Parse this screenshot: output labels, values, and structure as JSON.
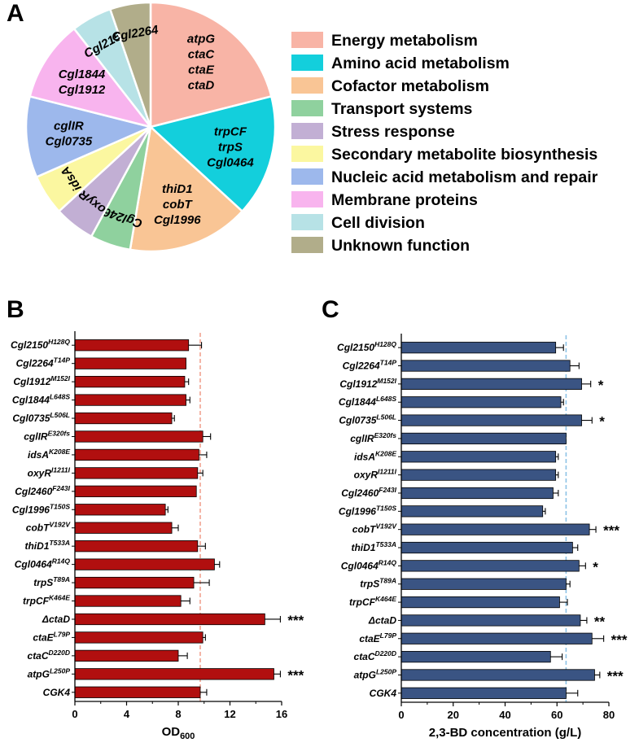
{
  "panel_labels": {
    "a": "A",
    "b": "B",
    "c": "C"
  },
  "chart_data": [
    {
      "type": "pie",
      "panel": "A",
      "legend_position": "right",
      "slices": [
        {
          "category": "Energy metabolism",
          "value": 4,
          "color": "#F8B4A6",
          "genes": [
            "atpG",
            "ctaC",
            "ctaE",
            "ctaD"
          ]
        },
        {
          "category": "Amino acid metabolism",
          "value": 3,
          "color": "#13CFDC",
          "genes": [
            "trpCF",
            "trpS",
            "Cgl0464"
          ]
        },
        {
          "category": "Cofactor metabolism",
          "value": 3,
          "color": "#F9C595",
          "genes": [
            "thiD1",
            "cobT",
            "Cgl1996"
          ]
        },
        {
          "category": "Transport systems",
          "value": 1,
          "color": "#8FD19E",
          "genes": [
            "Cgl2460"
          ]
        },
        {
          "category": "Stress response",
          "value": 1,
          "color": "#C2AFD4",
          "genes": [
            "oxyR"
          ]
        },
        {
          "category": "Secondary metabolite biosynthesis",
          "value": 1,
          "color": "#FBF7A0",
          "genes": [
            "idsA"
          ]
        },
        {
          "category": "Nucleic acid metabolism and repair",
          "value": 2,
          "color": "#9DB8EC",
          "genes": [
            "cglIR",
            "Cgl0735"
          ]
        },
        {
          "category": "Membrane proteins",
          "value": 2,
          "color": "#F8B4EE",
          "genes": [
            "Cgl1844",
            "Cgl1912"
          ]
        },
        {
          "category": "Cell division",
          "value": 1,
          "color": "#B7E2E6",
          "genes": [
            "Cgl2150"
          ]
        },
        {
          "category": "Unknown function",
          "value": 1,
          "color": "#B1AD8A",
          "genes": [
            "Cgl2264"
          ]
        }
      ]
    },
    {
      "type": "bar",
      "orientation": "horizontal",
      "panel": "B",
      "xlabel": "OD",
      "xlabel_sub": "600",
      "xlim": [
        0,
        16
      ],
      "xticks": [
        0,
        4,
        8,
        12,
        16
      ],
      "bar_color": "#B10F0F",
      "reference_line": {
        "value": 9.7,
        "color": "#F1A290",
        "style": "dashed"
      },
      "categories": [
        {
          "base": "Cgl2150",
          "sup": "H128Q",
          "value": 8.8,
          "error": 1.0,
          "sig": ""
        },
        {
          "base": "Cgl2264",
          "sup": "T14P",
          "value": 8.6,
          "error": 0.0,
          "sig": ""
        },
        {
          "base": "Cgl1912",
          "sup": "M152I",
          "value": 8.5,
          "error": 0.3,
          "sig": ""
        },
        {
          "base": "Cgl1844",
          "sup": "L648S",
          "value": 8.6,
          "error": 0.3,
          "sig": ""
        },
        {
          "base": "Cgl0735",
          "sup": "L506L",
          "value": 7.5,
          "error": 0.2,
          "sig": ""
        },
        {
          "base": "cglIR",
          "sup": "E320fs",
          "value": 9.9,
          "error": 0.6,
          "sig": ""
        },
        {
          "base": "idsA",
          "sup": "K208E",
          "value": 9.6,
          "error": 0.6,
          "sig": ""
        },
        {
          "base": "oxyR",
          "sup": "I1211I",
          "value": 9.5,
          "error": 0.4,
          "sig": ""
        },
        {
          "base": "Cgl2460",
          "sup": "F243I",
          "value": 9.4,
          "error": 0.0,
          "sig": ""
        },
        {
          "base": "Cgl1996",
          "sup": "T150S",
          "value": 7.0,
          "error": 0.2,
          "sig": ""
        },
        {
          "base": "cobT",
          "sup": "V192V",
          "value": 7.5,
          "error": 0.5,
          "sig": ""
        },
        {
          "base": "thiD1",
          "sup": "T533A",
          "value": 9.5,
          "error": 0.6,
          "sig": ""
        },
        {
          "base": "Cgl0464",
          "sup": "R14Q",
          "value": 10.8,
          "error": 0.4,
          "sig": ""
        },
        {
          "base": "trpS",
          "sup": "T89A",
          "value": 9.2,
          "error": 1.2,
          "sig": ""
        },
        {
          "base": "trpCF",
          "sup": "K464E",
          "value": 8.2,
          "error": 0.7,
          "sig": ""
        },
        {
          "base": "ΔctaD",
          "sup": "",
          "value": 14.7,
          "error": 1.2,
          "sig": "***"
        },
        {
          "base": "ctaE",
          "sup": "L79P",
          "value": 9.9,
          "error": 0.2,
          "sig": ""
        },
        {
          "base": "ctaC",
          "sup": "D220D",
          "value": 8.0,
          "error": 0.7,
          "sig": ""
        },
        {
          "base": "atpG",
          "sup": "L250P",
          "value": 15.4,
          "error": 0.5,
          "sig": "***"
        },
        {
          "base": "CGK4",
          "sup": "",
          "value": 9.7,
          "error": 0.5,
          "sig": ""
        }
      ]
    },
    {
      "type": "bar",
      "orientation": "horizontal",
      "panel": "C",
      "xlabel": "2,3-BD concentration (g/L)",
      "xlim": [
        0,
        80
      ],
      "xticks": [
        0,
        20,
        40,
        60,
        80
      ],
      "bar_color": "#3A5483",
      "reference_line": {
        "value": 63.5,
        "color": "#8DC3E6",
        "style": "dashed"
      },
      "categories": [
        {
          "base": "Cgl2150",
          "sup": "H128Q",
          "value": 59.5,
          "error": 3.0,
          "sig": ""
        },
        {
          "base": "Cgl2264",
          "sup": "T14P",
          "value": 65.0,
          "error": 3.5,
          "sig": ""
        },
        {
          "base": "Cgl1912",
          "sup": "M152I",
          "value": 69.5,
          "error": 3.5,
          "sig": "*"
        },
        {
          "base": "Cgl1844",
          "sup": "L648S",
          "value": 61.5,
          "error": 1.0,
          "sig": ""
        },
        {
          "base": "Cgl0735",
          "sup": "L506L",
          "value": 69.5,
          "error": 4.0,
          "sig": "*"
        },
        {
          "base": "cglIR",
          "sup": "E320fs",
          "value": 63.5,
          "error": 0.0,
          "sig": ""
        },
        {
          "base": "idsA",
          "sup": "K208E",
          "value": 59.5,
          "error": 1.0,
          "sig": ""
        },
        {
          "base": "oxyR",
          "sup": "I1211I",
          "value": 59.5,
          "error": 1.0,
          "sig": ""
        },
        {
          "base": "Cgl2460",
          "sup": "F243I",
          "value": 58.5,
          "error": 2.0,
          "sig": ""
        },
        {
          "base": "Cgl1996",
          "sup": "T150S",
          "value": 54.5,
          "error": 1.0,
          "sig": ""
        },
        {
          "base": "cobT",
          "sup": "V192V",
          "value": 72.5,
          "error": 2.5,
          "sig": "***"
        },
        {
          "base": "thiD1",
          "sup": "T533A",
          "value": 66.0,
          "error": 2.0,
          "sig": ""
        },
        {
          "base": "Cgl0464",
          "sup": "R14Q",
          "value": 68.5,
          "error": 2.5,
          "sig": "*"
        },
        {
          "base": "trpS",
          "sup": "T89A",
          "value": 63.5,
          "error": 1.5,
          "sig": ""
        },
        {
          "base": "trpCF",
          "sup": "K464E",
          "value": 61.0,
          "error": 3.0,
          "sig": ""
        },
        {
          "base": "ΔctaD",
          "sup": "",
          "value": 69.0,
          "error": 2.5,
          "sig": "**"
        },
        {
          "base": "ctaE",
          "sup": "L79P",
          "value": 73.5,
          "error": 4.5,
          "sig": "***"
        },
        {
          "base": "ctaC",
          "sup": "D220D",
          "value": 57.5,
          "error": 4.5,
          "sig": ""
        },
        {
          "base": "atpG",
          "sup": "L250P",
          "value": 74.5,
          "error": 2.0,
          "sig": "***"
        },
        {
          "base": "CGK4",
          "sup": "",
          "value": 63.5,
          "error": 4.5,
          "sig": ""
        }
      ]
    }
  ]
}
